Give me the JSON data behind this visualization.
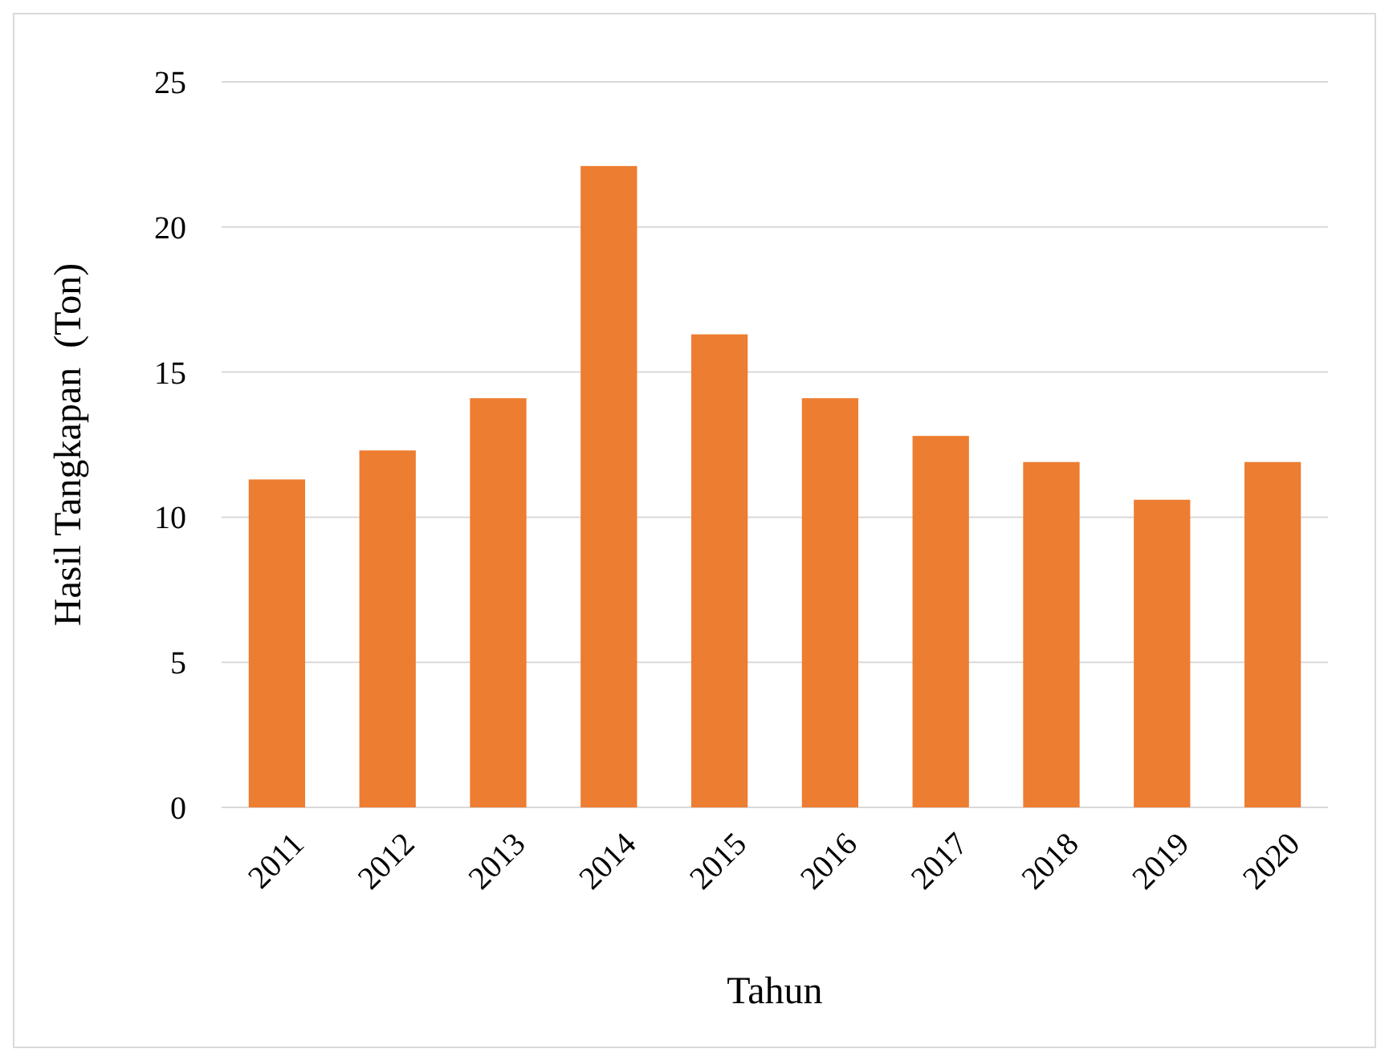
{
  "chart_data": {
    "type": "bar",
    "xlabel": "Tahun",
    "ylabel": "Hasil Tangkapan  (Ton)",
    "categories": [
      "2011",
      "2012",
      "2013",
      "2014",
      "2015",
      "2016",
      "2017",
      "2018",
      "2019",
      "2020"
    ],
    "values": [
      11.3,
      12.3,
      14.1,
      22.1,
      16.3,
      14.1,
      12.8,
      11.9,
      10.6,
      11.9
    ],
    "color": "#ed7d31",
    "ylim": [
      0,
      25
    ],
    "yticks": [
      0,
      5,
      10,
      15,
      20,
      25
    ],
    "grid": "y"
  }
}
